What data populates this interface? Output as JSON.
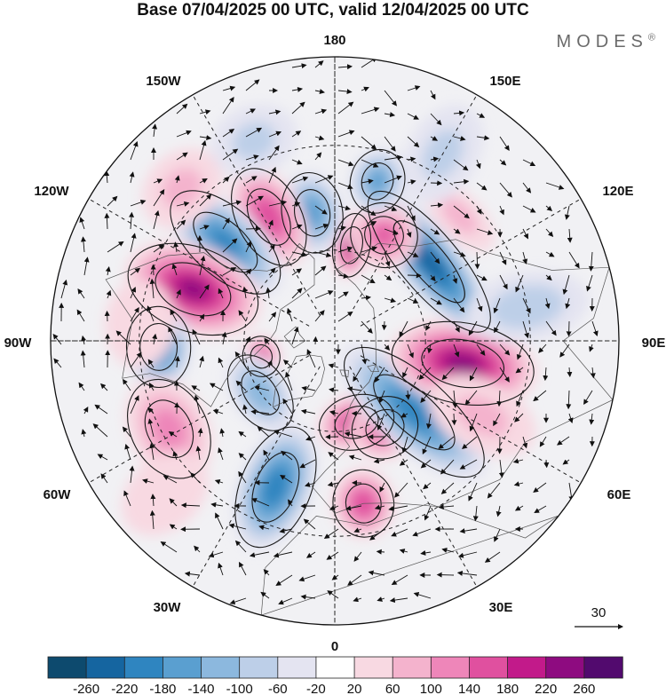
{
  "title": "Base 07/04/2025 00 UTC, valid 12/04/2025 00 UTC",
  "brand": "MODES",
  "brand_mark": "®",
  "longitude_labels": [
    "180",
    "150E",
    "120E",
    "90E",
    "60E",
    "30E",
    "0",
    "30W",
    "60W",
    "90W",
    "120W",
    "150W"
  ],
  "vector_reference": {
    "label": "30"
  },
  "colorbar": {
    "ticks": [
      "-260",
      "-220",
      "-180",
      "-140",
      "-100",
      "-60",
      "-20",
      "20",
      "60",
      "100",
      "140",
      "180",
      "220",
      "260"
    ],
    "colors": [
      "#0d4a6e",
      "#1565a0",
      "#2f85c0",
      "#5a9fd0",
      "#8cb8de",
      "#bdcfe8",
      "#e4e4f1",
      "#ffffff",
      "#f8d9e2",
      "#f4b3cd",
      "#ee86b9",
      "#e0509f",
      "#c21a8a",
      "#8e0b80",
      "#520a6e"
    ]
  },
  "anomalies": [
    {
      "lat": 62,
      "lon": 15,
      "value": 200,
      "rx": 45,
      "ry": 32
    },
    {
      "lat": 57,
      "lon": 30,
      "value": 160,
      "rx": 40,
      "ry": 36
    },
    {
      "lat": 55,
      "lon": 48,
      "value": -200,
      "rx": 42,
      "ry": 105
    },
    {
      "lat": 48,
      "lon": 80,
      "value": 240,
      "rx": 48,
      "ry": 85
    },
    {
      "lat": 50,
      "lon": 130,
      "value": -250,
      "rx": 105,
      "ry": 35
    },
    {
      "lat": 58,
      "lon": 170,
      "value": 220,
      "rx": 22,
      "ry": 38
    },
    {
      "lat": 52,
      "lon": 155,
      "value": 140,
      "rx": 40,
      "ry": 38
    },
    {
      "lat": 38,
      "lon": 165,
      "value": -150,
      "rx": 32,
      "ry": 38
    },
    {
      "lat": 48,
      "lon": -170,
      "value": -160,
      "rx": 36,
      "ry": 48
    },
    {
      "lat": 45,
      "lon": -152,
      "value": 170,
      "rx": 38,
      "ry": 62
    },
    {
      "lat": 43,
      "lon": -132,
      "value": -190,
      "rx": 40,
      "ry": 80
    },
    {
      "lat": 42,
      "lon": -110,
      "value": 230,
      "rx": 50,
      "ry": 80
    },
    {
      "lat": 35,
      "lon": -88,
      "value": -210,
      "rx": 48,
      "ry": 38
    },
    {
      "lat": 65,
      "lon": -78,
      "value": 170,
      "rx": 24,
      "ry": 22
    },
    {
      "lat": 60,
      "lon": -55,
      "value": -130,
      "rx": 50,
      "ry": 32
    },
    {
      "lat": 32,
      "lon": -62,
      "value": 110,
      "rx": 62,
      "ry": 45
    },
    {
      "lat": 22,
      "lon": -48,
      "value": 50,
      "rx": 40,
      "ry": 55
    },
    {
      "lat": 40,
      "lon": -22,
      "value": -210,
      "rx": 42,
      "ry": 75
    },
    {
      "lat": 38,
      "lon": 10,
      "value": 170,
      "rx": 36,
      "ry": 40
    },
    {
      "lat": 38,
      "lon": 63,
      "value": 60,
      "rx": 40,
      "ry": 65
    },
    {
      "lat": 30,
      "lon": 100,
      "value": -80,
      "rx": 40,
      "ry": 70
    },
    {
      "lat": 35,
      "lon": 135,
      "value": 60,
      "rx": 50,
      "ry": 25
    },
    {
      "lat": 25,
      "lon": 150,
      "value": -60,
      "rx": 40,
      "ry": 60
    },
    {
      "lat": 30,
      "lon": -95,
      "value": 40,
      "rx": 50,
      "ry": 40
    },
    {
      "lat": 25,
      "lon": -135,
      "value": 60,
      "rx": 50,
      "ry": 40
    },
    {
      "lat": 25,
      "lon": -158,
      "value": -60,
      "rx": 50,
      "ry": 40
    }
  ]
}
